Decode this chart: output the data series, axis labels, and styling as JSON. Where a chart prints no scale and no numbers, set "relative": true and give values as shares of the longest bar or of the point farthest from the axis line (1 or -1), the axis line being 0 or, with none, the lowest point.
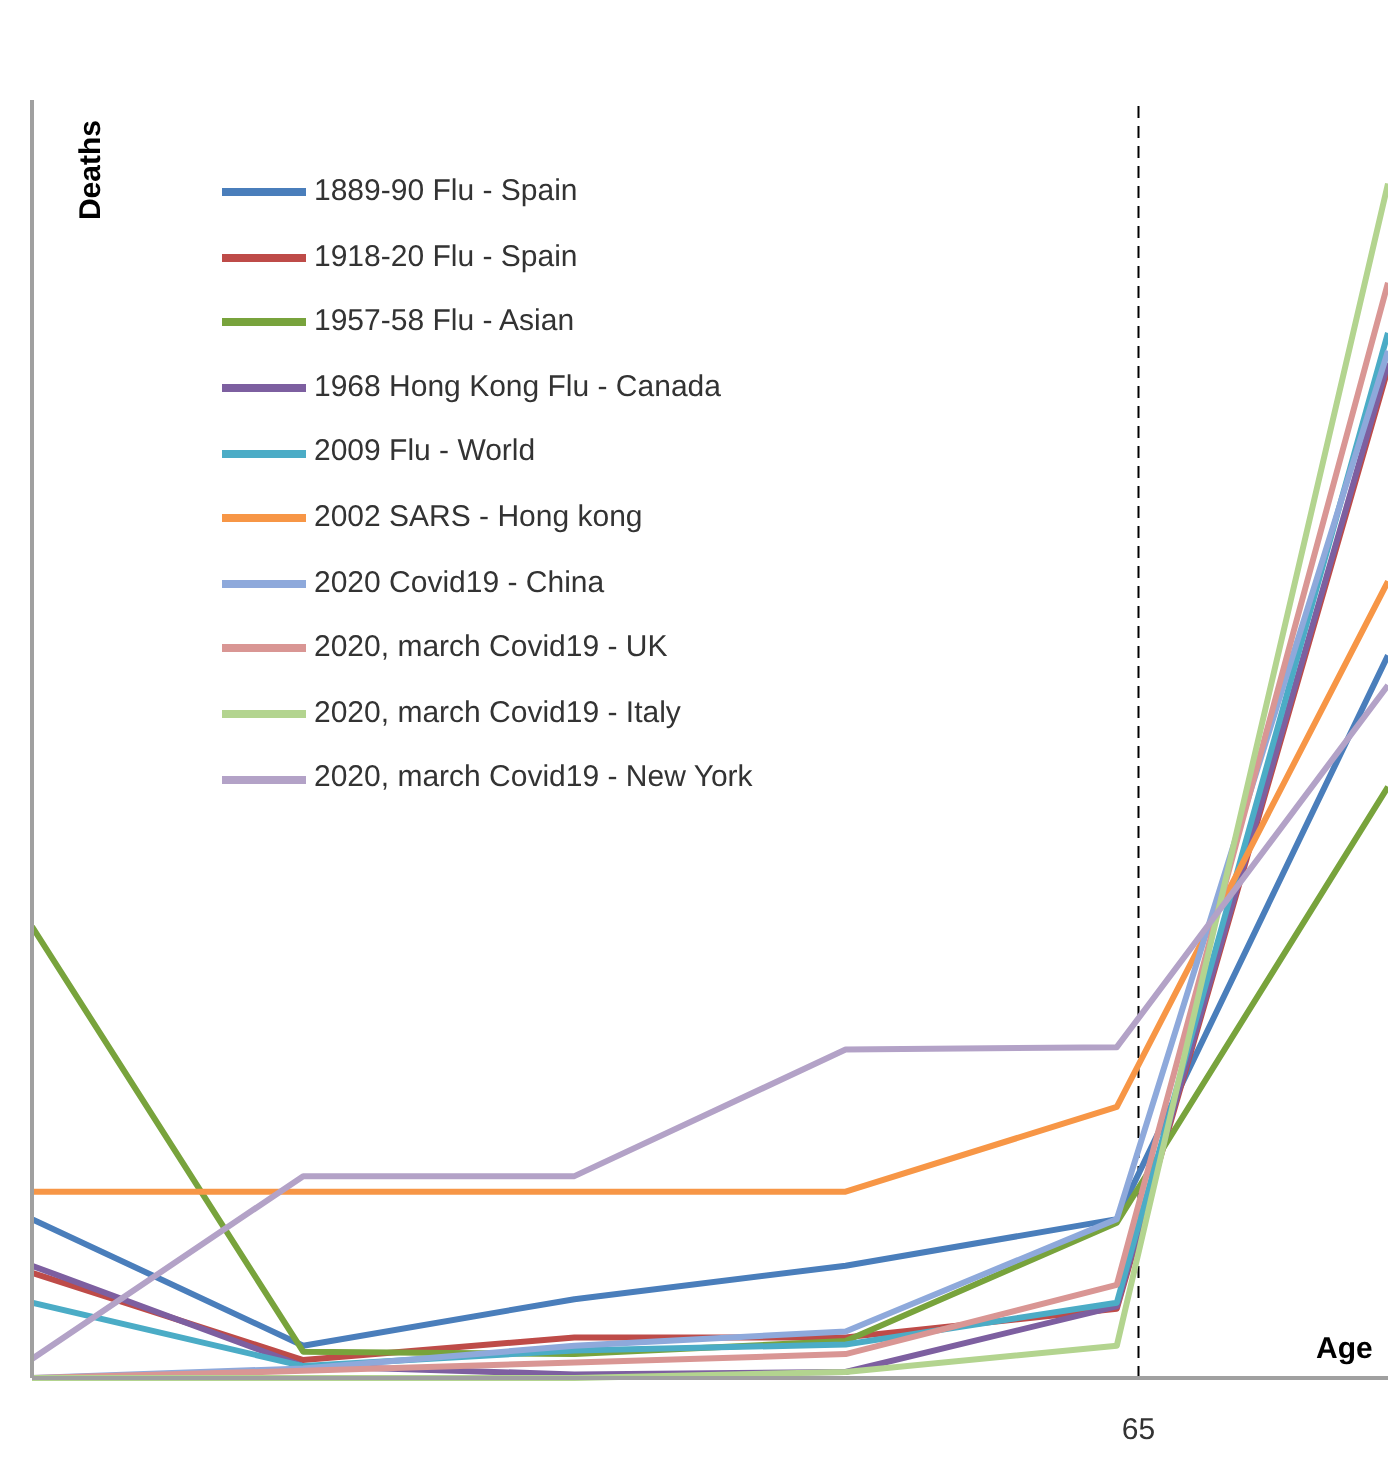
{
  "chart_data": {
    "type": "line",
    "xlabel": "Age",
    "ylabel": "Deaths",
    "relative": true,
    "legend": "top left",
    "marker": "none",
    "line_style": "solid",
    "categories": [
      null,
      null,
      null,
      null,
      null,
      null
    ],
    "annotations": [
      "65"
    ],
    "series": [
      {
        "name": "1889-90 Flu - Spain",
        "color": "#4a7ebb",
        "values": [
          0.133,
          0.027,
          0.066,
          0.094,
          0.133,
          0.605
        ]
      },
      {
        "name": "1918-20 Flu - Spain",
        "color": "#be4b48",
        "values": [
          0.088,
          0.015,
          0.034,
          0.034,
          0.058,
          0.845
        ]
      },
      {
        "name": "1957-58 Flu - Asian",
        "color": "#78a33c",
        "values": [
          0.378,
          0.022,
          0.02,
          0.031,
          0.13,
          0.495
        ]
      },
      {
        "name": "1968 Hong Kong Flu - Canada",
        "color": "#7d5fa0",
        "values": [
          0.094,
          0.01,
          0.003,
          0.005,
          0.06,
          0.85
        ]
      },
      {
        "name": "2009 Flu - World",
        "color": "#4bacc6",
        "values": [
          0.063,
          0.01,
          0.023,
          0.028,
          0.063,
          0.875
        ]
      },
      {
        "name": "2002 SARS - Hong kong",
        "color": "#f79646",
        "values": [
          0.156,
          0.156,
          0.156,
          0.156,
          0.227,
          0.667
        ]
      },
      {
        "name": "2020 Covid19 - China",
        "color": "#8ea9db",
        "values": [
          0,
          0.008,
          0.027,
          0.039,
          0.133,
          0.86
        ]
      },
      {
        "name": "2020, march Covid19 - UK",
        "color": "#d99694",
        "values": [
          0,
          0.006,
          0.013,
          0.02,
          0.078,
          0.917
        ]
      },
      {
        "name": "2020, march Covid19 - Italy",
        "color": "#b3d48f",
        "values": [
          0,
          0,
          0,
          0.005,
          0.027,
          1
        ]
      },
      {
        "name": "2020, march Covid19 - New York",
        "color": "#b3a2c7",
        "values": [
          0.016,
          0.169,
          0.169,
          0.275,
          0.277,
          0.58
        ]
      }
    ]
  }
}
